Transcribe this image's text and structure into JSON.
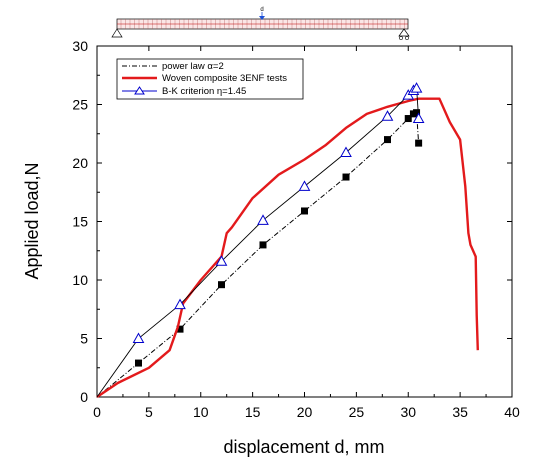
{
  "chart_data": {
    "type": "line",
    "title": "",
    "xlabel": "displacement d, mm",
    "ylabel": "Applied load,N",
    "xlim": [
      0,
      40
    ],
    "ylim": [
      0,
      30
    ],
    "x_ticks": [
      "0",
      "5",
      "10",
      "15",
      "20",
      "25",
      "30",
      "35",
      "40"
    ],
    "y_ticks": [
      "0",
      "5",
      "10",
      "15",
      "20",
      "25",
      "30"
    ],
    "grid": false,
    "legend_position": "top-left",
    "beam_inset_label": "d",
    "series": [
      {
        "name": "power law α=2",
        "style": "dash-dot line with filled square markers",
        "color": "#000000",
        "x": [
          0,
          4,
          8,
          12,
          16,
          20,
          24,
          28,
          30,
          30.5,
          30.8,
          31
        ],
        "y": [
          0,
          2.9,
          5.8,
          9.6,
          13.0,
          15.9,
          18.8,
          22.0,
          23.8,
          24.2,
          24.3,
          21.7
        ]
      },
      {
        "name": "Woven composite 3ENF tests",
        "style": "thick solid line",
        "color": "#e31a1c",
        "x": [
          0,
          2,
          5,
          7,
          7.8,
          8.3,
          10,
          12,
          12.5,
          13,
          15,
          17.5,
          20,
          22,
          24,
          26,
          28,
          30,
          31,
          33,
          34,
          35,
          35.5,
          35.8,
          36,
          36.5,
          36.6,
          36.7
        ],
        "y": [
          0,
          1.2,
          2.5,
          4.0,
          6.0,
          8.0,
          10.0,
          12.0,
          14.0,
          14.5,
          17.0,
          19.0,
          20.3,
          21.5,
          23.0,
          24.2,
          24.8,
          25.3,
          25.5,
          25.5,
          23.5,
          22.0,
          18.0,
          14.0,
          13.0,
          12.0,
          7.0,
          4.0
        ]
      },
      {
        "name": "B-K criterion η=1.45",
        "style": "thin solid line with open triangle markers",
        "color": "#0000cc",
        "x": [
          0,
          4,
          8,
          12,
          16,
          20,
          24,
          28,
          30,
          30.5,
          30.8,
          31
        ],
        "y": [
          0,
          5.0,
          7.9,
          11.6,
          15.1,
          18.0,
          20.9,
          24.0,
          25.8,
          26.2,
          26.4,
          23.8
        ]
      }
    ]
  }
}
